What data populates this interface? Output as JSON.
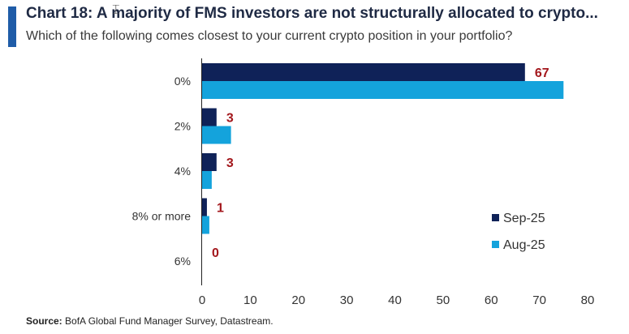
{
  "header": {
    "title": "Chart 18: A majority of FMS investors are not structurally allocated to crypto...",
    "subtitle": "Which of the following comes closest to your current crypto position in your portfolio?"
  },
  "footer": {
    "source_label": "Source:",
    "source_text": "BofA Global Fund Manager Survey, Datastream."
  },
  "colors": {
    "accent": "#1f5ca8",
    "sep25": "#0f2258",
    "aug25": "#14a3dc",
    "data_label": "#a3171c"
  },
  "chart_data": {
    "type": "bar",
    "orientation": "horizontal",
    "categories": [
      "0%",
      "2%",
      "4%",
      "8% or more",
      "6%"
    ],
    "series": [
      {
        "name": "Sep-25",
        "values": [
          67,
          3,
          3,
          1,
          0
        ]
      },
      {
        "name": "Aug-25",
        "values": [
          75,
          6,
          2,
          1.5,
          0
        ]
      }
    ],
    "data_labels": [
      "67",
      "3",
      "3",
      "1",
      "0"
    ],
    "x_ticks": [
      "0",
      "10",
      "20",
      "30",
      "40",
      "50",
      "60",
      "70",
      "80"
    ],
    "xlim": [
      0,
      80
    ],
    "grid": false,
    "legend": "right"
  }
}
